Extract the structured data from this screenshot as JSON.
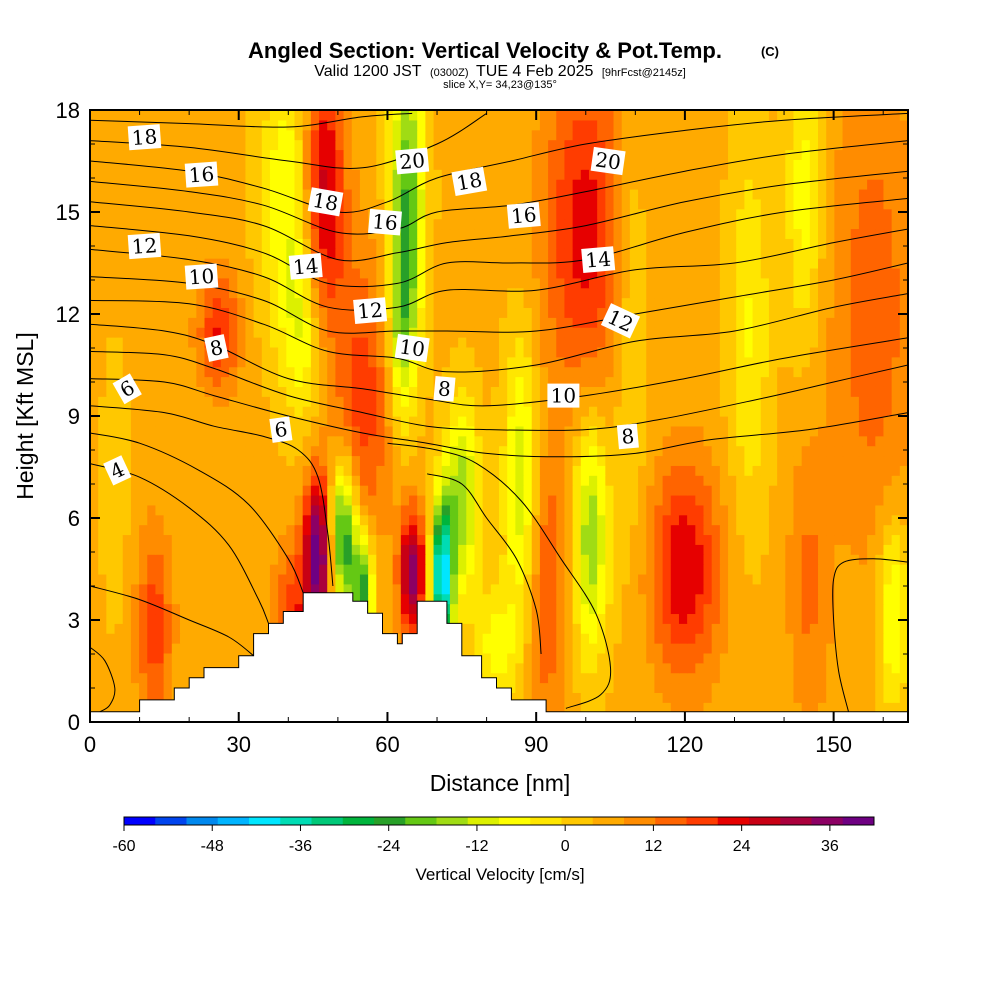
{
  "chart_data": {
    "type": "heatmap",
    "title": "Angled Section: Vertical Velocity & Pot.Temp.",
    "title_mark": "(C)",
    "subtitle_parts": [
      "Valid 1200 JST",
      "(0300Z)",
      "TUE 4 Feb 2025",
      "[9hrFcst@2145z]"
    ],
    "slice_label": "slice X,Y= 34,23@135°",
    "xlabel": "Distance [nm]",
    "ylabel": "Height [Kft MSL]",
    "xlim": [
      0,
      165
    ],
    "ylim": [
      0,
      18
    ],
    "x_ticks": [
      "0",
      "30",
      "60",
      "90",
      "120",
      "150"
    ],
    "y_ticks": [
      "0",
      "3",
      "6",
      "9",
      "12",
      "15",
      "18"
    ],
    "colorbar": {
      "label": "Vertical Velocity [cm/s]",
      "range": [
        -60,
        42
      ],
      "tick_labels": [
        "-60",
        "-48",
        "-36",
        "-24",
        "-12",
        "0",
        "12",
        "24",
        "36"
      ],
      "colors": [
        "#0000ff",
        "#0044ee",
        "#0088ee",
        "#00b4ff",
        "#00e6ff",
        "#00dcb4",
        "#00c878",
        "#00b43c",
        "#28a028",
        "#64c814",
        "#a0dc14",
        "#dcf000",
        "#ffff00",
        "#ffe600",
        "#ffc800",
        "#ffaa00",
        "#ff8c00",
        "#ff6400",
        "#ff3c00",
        "#e60000",
        "#c80014",
        "#aa003c",
        "#8c0064",
        "#6e0082"
      ]
    },
    "velocity_features": [
      {
        "x": 47,
        "y": 15.5,
        "sx": 3,
        "sy": 2.8,
        "value": 24
      },
      {
        "x": 46,
        "y": 5.0,
        "sx": 2,
        "sy": 1.6,
        "value": 36
      },
      {
        "x": 65,
        "y": 4.4,
        "sx": 1.8,
        "sy": 1.3,
        "value": 32
      },
      {
        "x": 100,
        "y": 14.5,
        "sx": 6,
        "sy": 3.5,
        "value": 18
      },
      {
        "x": 120,
        "y": 4.5,
        "sx": 5,
        "sy": 2.2,
        "value": 20
      },
      {
        "x": 26,
        "y": 11.5,
        "sx": 3,
        "sy": 1.2,
        "value": 16
      },
      {
        "x": 13,
        "y": 2.8,
        "sx": 2.5,
        "sy": 2,
        "value": 14
      },
      {
        "x": 55,
        "y": 9.5,
        "sx": 4,
        "sy": 3,
        "value": 14
      },
      {
        "x": 41,
        "y": 3.0,
        "sx": 3,
        "sy": 1.5,
        "value": 14
      },
      {
        "x": 92,
        "y": 4.0,
        "sx": 3,
        "sy": 3,
        "value": 12
      },
      {
        "x": 158,
        "y": 12,
        "sx": 6,
        "sy": 5,
        "value": 10
      },
      {
        "x": 145,
        "y": 4,
        "sx": 3,
        "sy": 3,
        "value": 8
      },
      {
        "x": 64,
        "y": 15.5,
        "sx": 2.5,
        "sy": 3,
        "value": -26
      },
      {
        "x": 63,
        "y": 11.5,
        "sx": 2,
        "sy": 2,
        "value": -16
      },
      {
        "x": 40,
        "y": 15.5,
        "sx": 4,
        "sy": 3,
        "value": -14
      },
      {
        "x": 43,
        "y": 11.5,
        "sx": 3,
        "sy": 2,
        "value": -12
      },
      {
        "x": 51,
        "y": 5.5,
        "sx": 2,
        "sy": 1.5,
        "value": -34
      },
      {
        "x": 55,
        "y": 3.8,
        "sx": 1.6,
        "sy": 1.2,
        "value": -30
      },
      {
        "x": 71,
        "y": 4.2,
        "sx": 1.5,
        "sy": 1.6,
        "value": -48
      },
      {
        "x": 75,
        "y": 6.5,
        "sx": 2.5,
        "sy": 2,
        "value": -22
      },
      {
        "x": 87,
        "y": 7,
        "sx": 2.5,
        "sy": 3,
        "value": -18
      },
      {
        "x": 101,
        "y": 5.5,
        "sx": 2.5,
        "sy": 2.5,
        "value": -22
      },
      {
        "x": 109,
        "y": 12,
        "sx": 2.5,
        "sy": 5,
        "value": -8
      },
      {
        "x": 133,
        "y": 11.5,
        "sx": 3,
        "sy": 4,
        "value": -10
      },
      {
        "x": 144,
        "y": 15.5,
        "sx": 2.5,
        "sy": 3,
        "value": -12
      },
      {
        "x": 162,
        "y": 3.2,
        "sx": 2.2,
        "sy": 2,
        "value": -16
      },
      {
        "x": 5,
        "y": 7,
        "sx": 2,
        "sy": 3,
        "value": -4
      },
      {
        "x": 82,
        "y": 2.2,
        "sx": 3,
        "sy": 1.2,
        "value": -12
      }
    ],
    "terrain": [
      [
        0,
        0.3
      ],
      [
        10,
        0.3
      ],
      [
        10,
        0.65
      ],
      [
        17,
        0.65
      ],
      [
        17,
        1.0
      ],
      [
        20,
        1.0
      ],
      [
        20,
        1.3
      ],
      [
        23,
        1.3
      ],
      [
        23,
        1.6
      ],
      [
        30,
        1.6
      ],
      [
        30,
        1.95
      ],
      [
        33,
        1.95
      ],
      [
        33,
        2.6
      ],
      [
        36,
        2.6
      ],
      [
        36,
        2.9
      ],
      [
        39,
        2.9
      ],
      [
        39,
        3.25
      ],
      [
        43,
        3.25
      ],
      [
        43,
        3.6
      ],
      [
        43,
        3.8
      ],
      [
        53,
        3.8
      ],
      [
        53,
        3.55
      ],
      [
        56,
        3.55
      ],
      [
        56,
        3.2
      ],
      [
        59,
        3.2
      ],
      [
        59,
        2.6
      ],
      [
        62,
        2.6
      ],
      [
        62,
        2.3
      ],
      [
        63,
        2.3
      ],
      [
        63,
        2.6
      ],
      [
        66,
        2.6
      ],
      [
        66,
        3.55
      ],
      [
        72,
        3.55
      ],
      [
        72,
        2.9
      ],
      [
        75,
        2.9
      ],
      [
        75,
        1.95
      ],
      [
        79,
        1.95
      ],
      [
        79,
        1.3
      ],
      [
        82,
        1.3
      ],
      [
        82,
        1.0
      ],
      [
        85,
        1.0
      ],
      [
        85,
        0.65
      ],
      [
        92,
        0.65
      ],
      [
        92,
        0.3
      ],
      [
        165,
        0.3
      ]
    ],
    "isentropes": [
      {
        "value": 18,
        "points": [
          [
            0,
            17.7
          ],
          [
            20,
            17.6
          ],
          [
            40,
            17.5
          ],
          [
            55,
            17.8
          ],
          [
            65,
            17.9
          ]
        ]
      },
      {
        "value": 17,
        "points": [
          [
            0,
            17.1
          ],
          [
            20,
            16.9
          ],
          [
            40,
            16.5
          ],
          [
            55,
            16.3
          ],
          [
            70,
            17.0
          ],
          [
            80,
            17.9
          ]
        ]
      },
      {
        "value": 16,
        "points": [
          [
            0,
            16.5
          ],
          [
            20,
            16.2
          ],
          [
            35,
            15.7
          ],
          [
            50,
            15.0
          ],
          [
            60,
            15.3
          ],
          [
            70,
            16.0
          ],
          [
            85,
            16.5
          ],
          [
            100,
            17.0
          ],
          [
            120,
            17.4
          ],
          [
            140,
            17.7
          ],
          [
            165,
            17.9
          ]
        ]
      },
      {
        "value": 15,
        "points": [
          [
            0,
            15.9
          ],
          [
            20,
            15.6
          ],
          [
            35,
            15.2
          ],
          [
            50,
            14.4
          ],
          [
            62,
            14.5
          ],
          [
            70,
            15.0
          ],
          [
            85,
            15.2
          ],
          [
            100,
            15.6
          ],
          [
            120,
            16.2
          ],
          [
            140,
            16.7
          ],
          [
            165,
            17.1
          ]
        ]
      },
      {
        "value": 14,
        "points": [
          [
            0,
            15.3
          ],
          [
            20,
            15.0
          ],
          [
            35,
            14.6
          ],
          [
            50,
            13.6
          ],
          [
            62,
            13.8
          ],
          [
            72,
            14.1
          ],
          [
            85,
            14.3
          ],
          [
            100,
            14.6
          ],
          [
            120,
            15.3
          ],
          [
            140,
            15.8
          ],
          [
            165,
            16.2
          ]
        ]
      },
      {
        "value": 13,
        "points": [
          [
            0,
            14.6
          ],
          [
            20,
            14.3
          ],
          [
            35,
            13.8
          ],
          [
            48,
            12.9
          ],
          [
            62,
            12.9
          ],
          [
            72,
            13.5
          ],
          [
            85,
            13.5
          ],
          [
            100,
            13.6
          ],
          [
            120,
            14.4
          ],
          [
            140,
            15.0
          ],
          [
            165,
            15.4
          ]
        ]
      },
      {
        "value": 12,
        "points": [
          [
            0,
            13.9
          ],
          [
            20,
            13.6
          ],
          [
            35,
            13.1
          ],
          [
            48,
            12.2
          ],
          [
            62,
            12.2
          ],
          [
            72,
            12.7
          ],
          [
            90,
            12.7
          ],
          [
            110,
            13.3
          ],
          [
            130,
            13.5
          ],
          [
            150,
            14.1
          ],
          [
            165,
            14.5
          ]
        ]
      },
      {
        "value": 11,
        "points": [
          [
            0,
            13.1
          ],
          [
            20,
            12.9
          ],
          [
            35,
            12.4
          ],
          [
            48,
            11.5
          ],
          [
            62,
            11.5
          ],
          [
            72,
            11.5
          ],
          [
            90,
            11.5
          ],
          [
            110,
            12.0
          ],
          [
            130,
            12.5
          ],
          [
            150,
            13.0
          ],
          [
            165,
            13.5
          ]
        ]
      },
      {
        "value": 10,
        "points": [
          [
            0,
            12.4
          ],
          [
            20,
            12.3
          ],
          [
            35,
            11.7
          ],
          [
            48,
            10.9
          ],
          [
            62,
            10.7
          ],
          [
            72,
            10.3
          ],
          [
            90,
            10.5
          ],
          [
            110,
            11.2
          ],
          [
            130,
            11.5
          ],
          [
            150,
            12.2
          ],
          [
            165,
            12.6
          ]
        ]
      },
      {
        "value": 9,
        "points": [
          [
            0,
            11.7
          ],
          [
            15,
            11.5
          ],
          [
            25,
            11.1
          ],
          [
            40,
            10.1
          ],
          [
            55,
            9.8
          ],
          [
            68,
            9.5
          ],
          [
            80,
            9.3
          ],
          [
            100,
            9.6
          ],
          [
            120,
            10.1
          ],
          [
            140,
            10.7
          ],
          [
            165,
            11.3
          ]
        ]
      },
      {
        "value": 8,
        "points": [
          [
            0,
            10.9
          ],
          [
            15,
            10.8
          ],
          [
            25,
            10.4
          ],
          [
            40,
            9.6
          ],
          [
            55,
            9.1
          ],
          [
            68,
            8.7
          ],
          [
            80,
            8.6
          ],
          [
            100,
            8.6
          ],
          [
            115,
            8.9
          ],
          [
            135,
            9.5
          ],
          [
            150,
            10.0
          ],
          [
            165,
            10.5
          ]
        ]
      },
      {
        "value": 7,
        "points": [
          [
            0,
            10.1
          ],
          [
            15,
            10.0
          ],
          [
            25,
            9.6
          ],
          [
            40,
            9.0
          ],
          [
            55,
            8.5
          ],
          [
            68,
            8.2
          ],
          [
            80,
            7.9
          ],
          [
            95,
            7.8
          ],
          [
            110,
            7.9
          ],
          [
            125,
            8.3
          ],
          [
            145,
            8.6
          ],
          [
            165,
            9.1
          ]
        ]
      },
      {
        "value": 6,
        "points": [
          [
            0,
            9.3
          ],
          [
            15,
            9.1
          ],
          [
            25,
            8.7
          ],
          [
            35,
            8.4
          ],
          [
            42,
            8.0
          ],
          [
            46,
            7.2
          ],
          [
            48,
            5.5
          ],
          [
            49,
            4.0
          ]
        ]
      },
      {
        "value": 5,
        "points": [
          [
            0,
            8.5
          ],
          [
            10,
            8.2
          ],
          [
            22,
            7.4
          ],
          [
            32,
            6.4
          ],
          [
            40,
            4.8
          ],
          [
            43,
            3.8
          ]
        ]
      },
      {
        "value": 4,
        "points": [
          [
            0,
            7.6
          ],
          [
            10,
            7.2
          ],
          [
            20,
            6.3
          ],
          [
            28,
            5.2
          ],
          [
            34,
            3.6
          ],
          [
            36,
            2.9
          ]
        ]
      },
      {
        "value": 3,
        "points": [
          [
            0,
            4.0
          ],
          [
            10,
            3.6
          ],
          [
            20,
            3.0
          ],
          [
            28,
            2.5
          ],
          [
            33,
            1.95
          ]
        ]
      },
      {
        "value": 2,
        "points": [
          [
            0,
            2.2
          ],
          [
            3,
            1.8
          ],
          [
            5,
            1.0
          ],
          [
            4,
            0.5
          ],
          [
            2,
            0.3
          ]
        ]
      },
      {
        "value": 7.5,
        "points": [
          [
            60,
            8.2
          ],
          [
            70,
            8.0
          ],
          [
            78,
            7.6
          ],
          [
            87,
            6.5
          ],
          [
            95,
            4.8
          ],
          [
            102,
            3.2
          ],
          [
            105,
            1.6
          ],
          [
            103,
            0.8
          ],
          [
            96,
            0.4
          ]
        ]
      },
      {
        "value": 6.5,
        "points": [
          [
            68,
            7.3
          ],
          [
            75,
            7.0
          ],
          [
            80,
            6.0
          ],
          [
            86,
            4.8
          ],
          [
            90,
            3.3
          ],
          [
            91,
            2.0
          ]
        ]
      },
      {
        "value": 4.5,
        "points": [
          [
            153,
            0.3
          ],
          [
            151,
            1.5
          ],
          [
            150,
            3.0
          ],
          [
            150,
            4.2
          ],
          [
            152,
            4.7
          ],
          [
            158,
            4.8
          ],
          [
            165,
            4.7
          ]
        ]
      }
    ],
    "contour_labels": [
      {
        "text": "18",
        "x": 11,
        "y": 17.2,
        "angle": -4
      },
      {
        "text": "16",
        "x": 22.5,
        "y": 16.1,
        "angle": -4
      },
      {
        "text": "12",
        "x": 11,
        "y": 14.0,
        "angle": -4
      },
      {
        "text": "10",
        "x": 22.5,
        "y": 13.1,
        "angle": -4
      },
      {
        "text": "8",
        "x": 25.5,
        "y": 11.0,
        "angle": -12
      },
      {
        "text": "6",
        "x": 7.5,
        "y": 9.8,
        "angle": -30
      },
      {
        "text": "4",
        "x": 5.5,
        "y": 7.4,
        "angle": -25
      },
      {
        "text": "6",
        "x": 38.5,
        "y": 8.6,
        "angle": -8
      },
      {
        "text": "14",
        "x": 43.5,
        "y": 13.4,
        "angle": -5
      },
      {
        "text": "18",
        "x": 47.5,
        "y": 15.3,
        "angle": 10
      },
      {
        "text": "16",
        "x": 59.5,
        "y": 14.7,
        "angle": 5
      },
      {
        "text": "12",
        "x": 56.5,
        "y": 12.1,
        "angle": -5
      },
      {
        "text": "20",
        "x": 65,
        "y": 16.5,
        "angle": -5
      },
      {
        "text": "10",
        "x": 65,
        "y": 11.0,
        "angle": 8
      },
      {
        "text": "8",
        "x": 71.5,
        "y": 9.8,
        "angle": 5
      },
      {
        "text": "18",
        "x": 76.5,
        "y": 15.9,
        "angle": -10
      },
      {
        "text": "16",
        "x": 87.5,
        "y": 14.9,
        "angle": -5
      },
      {
        "text": "14",
        "x": 102.5,
        "y": 13.6,
        "angle": -5
      },
      {
        "text": "10",
        "x": 95.5,
        "y": 9.6,
        "angle": 0
      },
      {
        "text": "8",
        "x": 108.5,
        "y": 8.4,
        "angle": -5
      },
      {
        "text": "20",
        "x": 104.5,
        "y": 16.5,
        "angle": 8
      },
      {
        "text": "12",
        "x": 107,
        "y": 11.8,
        "angle": 25
      }
    ]
  }
}
